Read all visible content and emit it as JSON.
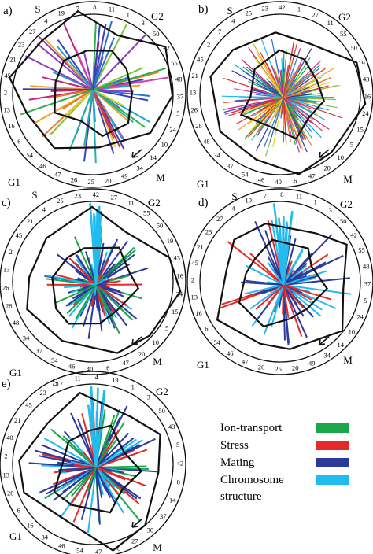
{
  "colors": {
    "ion_transport": "#1aa64a",
    "stress": "#e52a2a",
    "mating": "#2b3a9b",
    "chromosome_structure": "#21bcef",
    "panel_a_palette": [
      "#e9d32a",
      "#f2a21f",
      "#e97a2a",
      "#d63b3b",
      "#c2227a",
      "#d43fb0",
      "#8a3dbf",
      "#3d3fb6",
      "#2b6fd1",
      "#1aa6d6",
      "#22b4a0",
      "#2fae4a",
      "#7fc23a"
    ]
  },
  "legend": {
    "items": [
      {
        "label": "Ion-transport",
        "color": "#1aa64a"
      },
      {
        "label": "Stress",
        "color": "#e52a2a"
      },
      {
        "label": "Mating",
        "color": "#2b3a9b"
      },
      {
        "label": "Chromosome\nstructure",
        "color": "#21bcef"
      }
    ]
  },
  "panels": [
    {
      "letter": "a)",
      "phases": {
        "s": "S",
        "g2": "G2",
        "m": "M",
        "g1": "G1"
      },
      "numbers": [
        "7",
        "8",
        "11",
        "1",
        "3",
        "50",
        "42",
        "55",
        "48",
        "37",
        "5",
        "24",
        "10",
        "14",
        "34",
        "49",
        "20",
        "25",
        "26",
        "47",
        "46",
        "54",
        "6",
        "16",
        "13",
        "2",
        "45",
        "21",
        "23",
        "27",
        "4",
        "19"
      ]
    },
    {
      "letter": "b)",
      "phases": {
        "s": "S",
        "g2": "G2",
        "m": "M",
        "g1": "G1"
      },
      "numbers": [
        "23",
        "42",
        "1",
        "27",
        "11",
        "55",
        "50",
        "19",
        "43",
        "16",
        "24",
        "15",
        "5",
        "10",
        "20",
        "47",
        "6",
        "40",
        "46",
        "54",
        "37",
        "34",
        "48",
        "28",
        "26",
        "13",
        "21",
        "45",
        "2",
        "7",
        "4",
        "25"
      ]
    },
    {
      "letter": "c)",
      "phases": {
        "s": "S",
        "g2": "G2",
        "m": "M",
        "g1": "G1"
      },
      "numbers": [
        "23",
        "42",
        "27",
        "11",
        "55",
        "50",
        "19",
        "43",
        "16",
        "24",
        "15",
        "5",
        "10",
        "20",
        "47",
        "6",
        "40",
        "46",
        "54",
        "37",
        "34",
        "48",
        "28",
        "26",
        "13",
        "2",
        "45",
        "21",
        "4",
        "25"
      ]
    },
    {
      "letter": "d)",
      "phases": {
        "s": "S",
        "g2": "G2",
        "m": "M",
        "g1": "G1"
      },
      "numbers": [
        "7",
        "8",
        "11",
        "1",
        "3",
        "50",
        "42",
        "55",
        "48",
        "37",
        "5",
        "24",
        "10",
        "14",
        "34",
        "49",
        "20",
        "25",
        "26",
        "47",
        "46",
        "54",
        "6",
        "16",
        "13",
        "2",
        "45",
        "21",
        "23",
        "27",
        "4",
        "19"
      ]
    },
    {
      "letter": "e)",
      "phases": {
        "s": "S",
        "g2": "G2",
        "m": "M",
        "g1": "G1"
      },
      "numbers": [
        "11",
        "4",
        "19",
        "1",
        "3",
        "50",
        "43",
        "5",
        "42",
        "8",
        "14",
        "37",
        "30",
        "27",
        "48",
        "47",
        "54",
        "46",
        "34",
        "16",
        "6",
        "28",
        "13",
        "2",
        "40",
        "21",
        "45",
        "23",
        "17"
      ]
    }
  ]
}
